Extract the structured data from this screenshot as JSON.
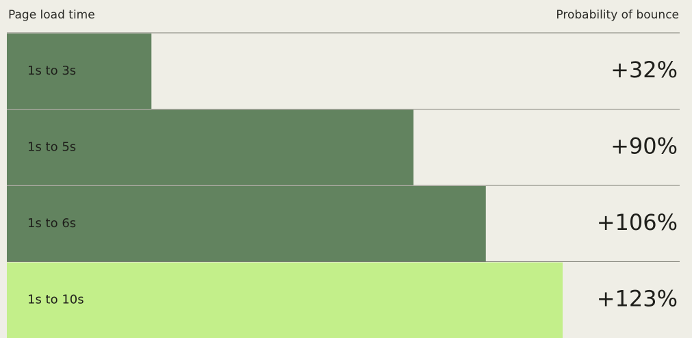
{
  "chart_data": {
    "type": "hbar",
    "ylabel": "Page load time",
    "xlabel": "Probability of bounce",
    "categories": [
      "1s to 3s",
      "1s to 5s",
      "1s to 6s",
      "1s to 10s"
    ],
    "values": [
      32,
      90,
      106,
      123
    ],
    "value_labels": [
      "+32%",
      "+90%",
      "+106%",
      "+123%"
    ],
    "colors": [
      "#62835f",
      "#62835f",
      "#62835f",
      "#c3ef8a"
    ]
  }
}
